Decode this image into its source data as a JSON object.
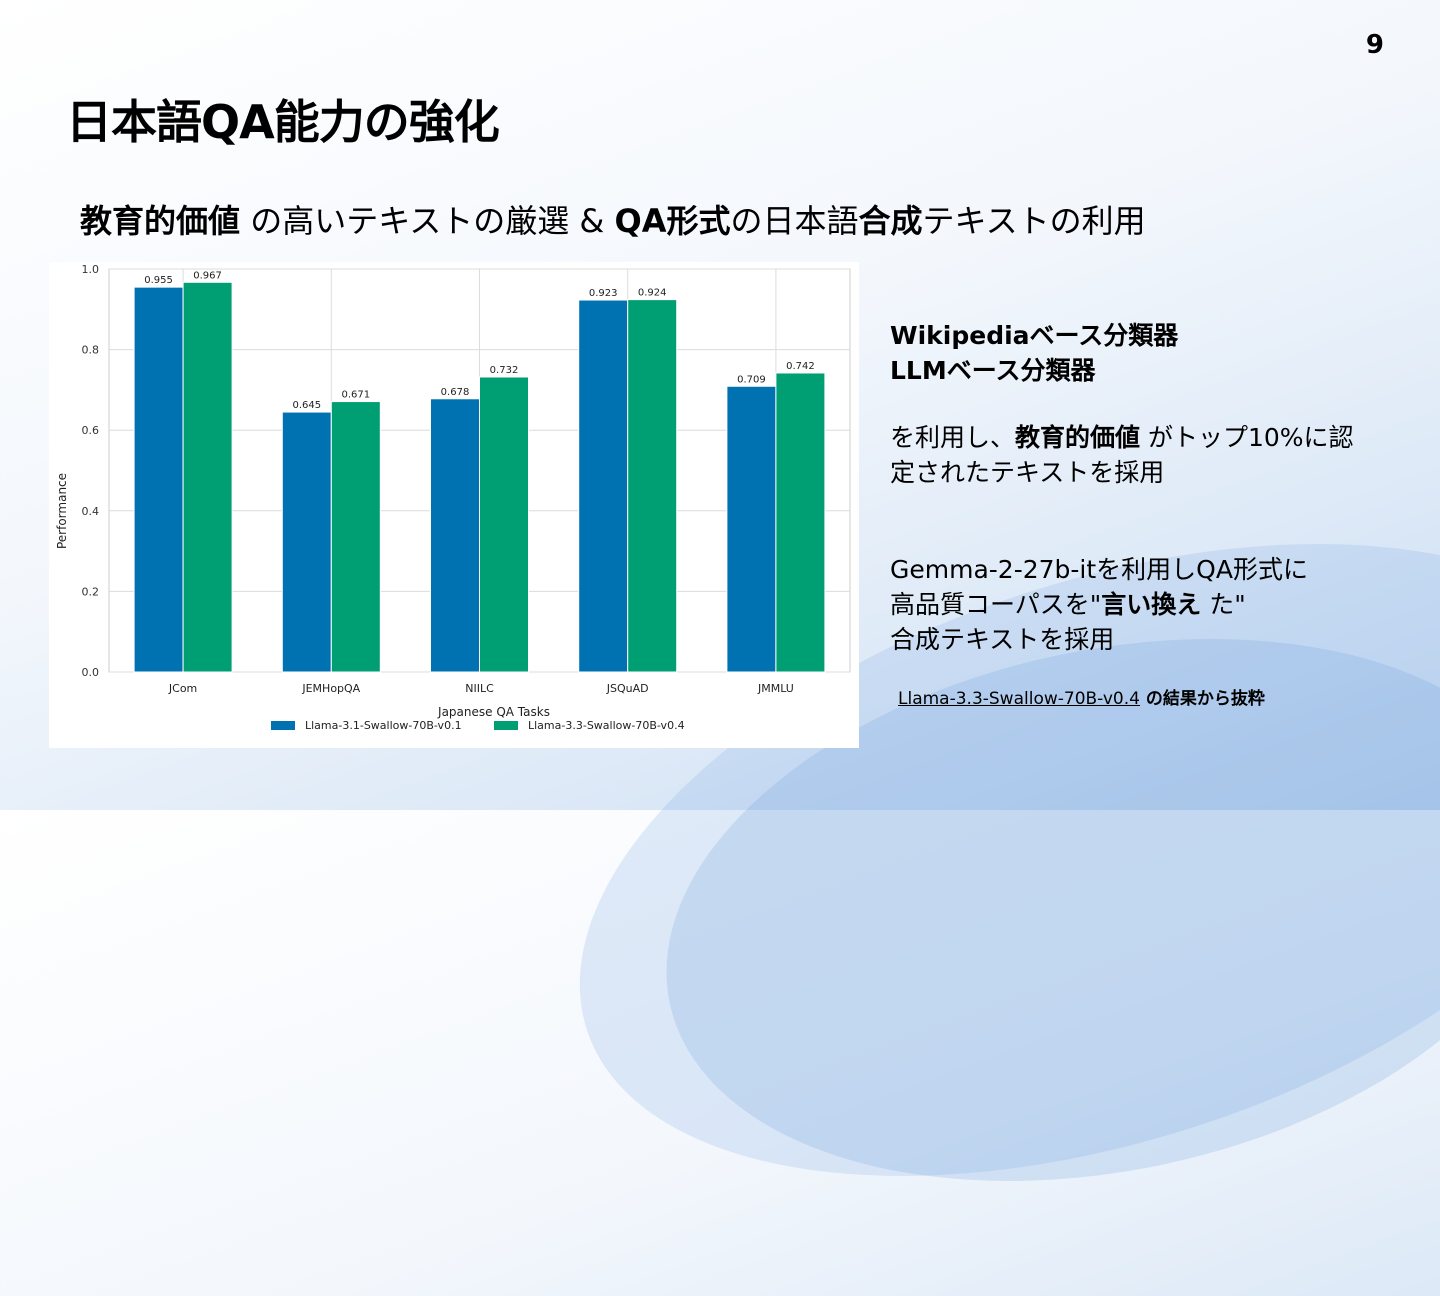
{
  "slide": {
    "page_number": "9",
    "title": "日本語QA能力の強化",
    "subtitle": {
      "p1": "教育的価値",
      "p2": " の高いテキストの厳選 & ",
      "p3": "QA形式",
      "p4": "の日本語",
      "p5": "合成",
      "p6": "テキストの利用"
    },
    "right": {
      "classifier1": "Wikipediaベース分類器",
      "classifier2": "LLMベース分類器",
      "desc1_a": "を利用し、",
      "desc1_b": "教育的価値",
      "desc1_c": " がトップ10%に認",
      "desc1_d": "定されたテキストを採用",
      "desc2_a": "Gemma-2-27b-itを利用しQA形式に",
      "desc2_b": "高品質コーパスを\"",
      "desc2_c": "言い換え",
      "desc2_d": " た\"",
      "desc2_e": "合成テキストを採用",
      "source_link": "Llama-3.3-Swallow-70B-v0.4",
      "source_rest": " の結果から抜粋"
    }
  },
  "chart_data": {
    "type": "bar",
    "categories": [
      "JCom",
      "JEMHopQA",
      "NIILC",
      "JSQuAD",
      "JMMLU"
    ],
    "series": [
      {
        "name": "Llama-3.1-Swallow-70B-v0.1",
        "color": "#0072b2",
        "values": [
          0.955,
          0.645,
          0.678,
          0.923,
          0.709
        ],
        "labels": [
          "0.955",
          "0.645",
          "0.678",
          "0.923",
          "0.709"
        ]
      },
      {
        "name": "Llama-3.3-Swallow-70B-v0.4",
        "color": "#009e73",
        "values": [
          0.967,
          0.671,
          0.732,
          0.924,
          0.742
        ],
        "labels": [
          "0.967",
          "0.671",
          "0.732",
          "0.924",
          "0.742"
        ]
      }
    ],
    "xlabel": "Japanese QA Tasks",
    "ylabel": "Performance",
    "ylim": [
      0,
      1.0
    ],
    "yticks": [
      "0.0",
      "0.2",
      "0.4",
      "0.6",
      "0.8",
      "1.0"
    ],
    "grid": true,
    "legend": "bottom"
  }
}
